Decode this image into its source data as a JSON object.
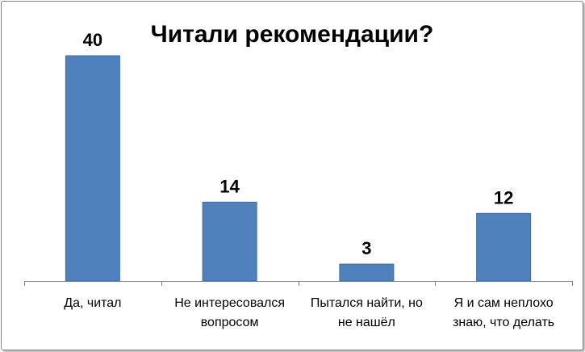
{
  "chart_data": {
    "type": "bar",
    "title": "Читали рекомендации?",
    "categories": [
      [
        "Да, читал"
      ],
      [
        "Не интересовался",
        "вопросом"
      ],
      [
        "Пытался найти, но",
        "не нашёл"
      ],
      [
        "Я и сам неплохо",
        "знаю, что делать"
      ]
    ],
    "values": [
      40,
      14,
      3,
      12
    ],
    "xlabel": "",
    "ylabel": "",
    "ylim": [
      0,
      40
    ],
    "grid": false,
    "legend": "none",
    "bar_color": "#4f81bd",
    "bar_border_color": "#3a6ea5",
    "axis_color": "#7f7f7f"
  }
}
